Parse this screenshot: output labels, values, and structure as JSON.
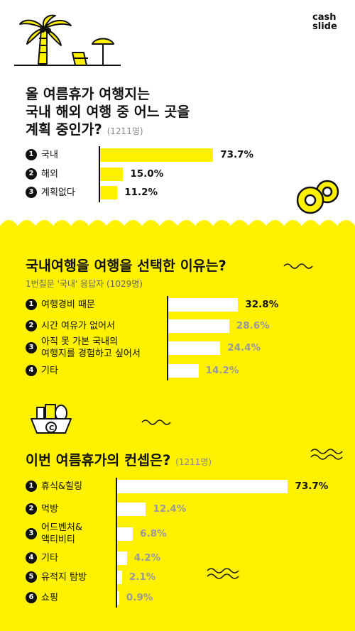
{
  "brand": {
    "line1": "cash",
    "line2": "slide"
  },
  "colors": {
    "yellow": "#FFF100",
    "black": "#111111",
    "grey": "#999999",
    "white": "#FFFFFF"
  },
  "chart_data": [
    {
      "type": "bar",
      "orientation": "horizontal",
      "title_lines": [
        "올 여름휴가 여행지는",
        "국내 해외 여행 중 어느 곳을",
        "계획 중인가?"
      ],
      "note": "(1211명)",
      "categories": [
        "국내",
        "해외",
        "계획없다"
      ],
      "values": [
        73.7,
        15.0,
        11.2
      ],
      "labels": [
        "73.7%",
        "15.0%",
        "11.2%"
      ],
      "xlim": [
        0,
        100
      ]
    },
    {
      "type": "bar",
      "orientation": "horizontal",
      "title": "국내여행을 여행을 선택한 이유는?",
      "subtitle": "1번질문 '국내' 응답자 (1029명)",
      "categories": [
        [
          "여행경비 때문"
        ],
        [
          "시간 여유가 없어서"
        ],
        [
          "아직 못 가본 국내의",
          "여행지를 경험하고 싶어서"
        ],
        [
          "기타"
        ]
      ],
      "values": [
        32.8,
        28.6,
        24.4,
        14.2
      ],
      "labels": [
        "32.8%",
        "28.6%",
        "24.4%",
        "14.2%"
      ],
      "xlim": [
        0,
        35
      ]
    },
    {
      "type": "bar",
      "orientation": "horizontal",
      "title": "이번 여름휴가의 컨셉은?",
      "note": "(1211명)",
      "categories": [
        [
          "휴식&힐링"
        ],
        [
          "먹방"
        ],
        [
          "어드벤처&",
          "액티비티"
        ],
        [
          "기타"
        ],
        [
          "유적지 탐방"
        ],
        [
          "쇼핑"
        ]
      ],
      "values": [
        73.7,
        12.4,
        6.8,
        4.2,
        2.1,
        0.9
      ],
      "labels": [
        "73.7%",
        "12.4%",
        "6.8%",
        "4.2%",
        "2.1%",
        "0.9%"
      ],
      "xlim": [
        0,
        80
      ]
    }
  ]
}
